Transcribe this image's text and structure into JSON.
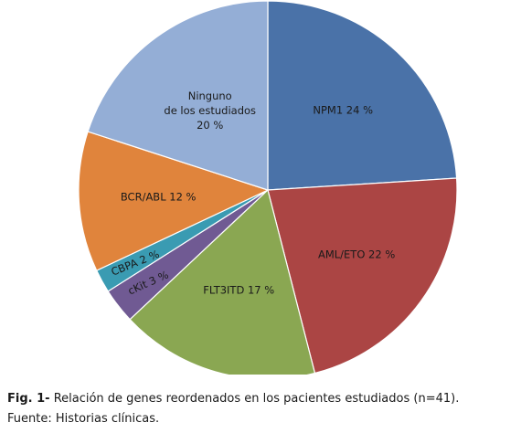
{
  "chart_data": {
    "type": "pie",
    "slices": [
      {
        "label": "NPM1 24 %",
        "value": 24,
        "color": "#4a72a8"
      },
      {
        "label": "AML/ETO 22 %",
        "value": 22,
        "color": "#ab4544"
      },
      {
        "label": "FLT3ITD 17 %",
        "value": 17,
        "color": "#8aa752"
      },
      {
        "label": "cKit 3 %",
        "value": 3,
        "color": "#705a93"
      },
      {
        "label": "CBPA 2 %",
        "value": 2,
        "color": "#3a9bb2"
      },
      {
        "label": "BCR/ABL 12 %",
        "value": 12,
        "color": "#e0843c"
      },
      {
        "label": "Ninguno de los estudiados 20 %",
        "lines": [
          "Ninguno",
          "de los estudiados",
          "20 %"
        ],
        "value": 20,
        "color": "#94aed6"
      }
    ]
  },
  "caption": {
    "fig_label": "Fig. 1-",
    "text": " Relación de genes reordenados en los pacientes estudiados (n=41).",
    "source": "Fuente: Historias clínicas."
  }
}
